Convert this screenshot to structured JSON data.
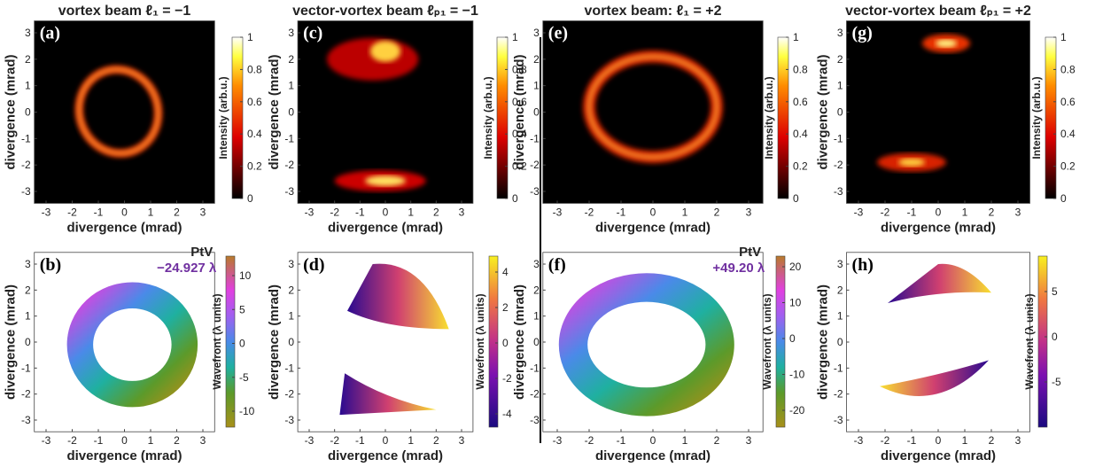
{
  "panels": [
    {
      "label": "(a)",
      "title": "vortex beam ℓ₁ = −1",
      "x_label": "divergence (mrad)",
      "y_label": "divergence (mrad)",
      "x_ticks": [
        "-3",
        "-2",
        "-1",
        "0",
        "1",
        "2",
        "3"
      ],
      "y_ticks": [
        "3",
        "2",
        "1",
        "0",
        "-1",
        "-2",
        "-3"
      ],
      "colorbar": {
        "label": "Intensity (arb.u.)",
        "ticks": [
          "1",
          "0.8",
          "0.6",
          "0.4",
          "0.2",
          "0"
        ]
      }
    },
    {
      "label": "(b)",
      "annotation": [
        "PtV",
        "−24.927 λ"
      ],
      "x_label": "divergence (mrad)",
      "y_label": "divergence (mrad)",
      "x_ticks": [
        "-3",
        "-2",
        "-1",
        "0",
        "1",
        "2",
        "3"
      ],
      "y_ticks": [
        "3",
        "2",
        "1",
        "0",
        "-1",
        "-2",
        "-3"
      ],
      "colorbar": {
        "label": "Wavefront (λ units)",
        "ticks": [
          "10",
          "5",
          "0",
          "-5",
          "-10"
        ]
      }
    },
    {
      "label": "(c)",
      "title": "vector-vortex beam ℓₚ₁ = −1",
      "x_label": "divergence (mrad)",
      "y_label": "divergence (mrad)",
      "x_ticks": [
        "-3",
        "-2",
        "-1",
        "0",
        "1",
        "2",
        "3"
      ],
      "y_ticks": [
        "3",
        "2",
        "1",
        "0",
        "-1",
        "-2",
        "-3"
      ],
      "colorbar": {
        "label": "Intensity (arb.u.)",
        "ticks": [
          "1",
          "0.8",
          "0.6",
          "0.4",
          "0.2",
          "0"
        ]
      }
    },
    {
      "label": "(d)",
      "x_label": "divergence (mrad)",
      "y_label": "divergence (mrad)",
      "x_ticks": [
        "-3",
        "-2",
        "-1",
        "0",
        "1",
        "2",
        "3"
      ],
      "y_ticks": [
        "3",
        "2",
        "1",
        "0",
        "-1",
        "-2",
        "-3"
      ],
      "colorbar": {
        "label": "Wavefront (λ units)",
        "ticks": [
          "4",
          "2",
          "0",
          "-2",
          "-4"
        ]
      }
    },
    {
      "label": "(e)",
      "title": "vortex beam: ℓ₁ = +2",
      "x_label": "divergence (mrad)",
      "y_label": "divergence (mrad)",
      "x_ticks": [
        "-3",
        "-2",
        "-1",
        "0",
        "1",
        "2",
        "3"
      ],
      "y_ticks": [
        "3",
        "2",
        "1",
        "0",
        "-1",
        "-2",
        "-3"
      ],
      "colorbar": {
        "label": "Intensity (arb.u.)",
        "ticks": [
          "1",
          "0.8",
          "0.6",
          "0.4",
          "0.2",
          "0"
        ]
      }
    },
    {
      "label": "(f)",
      "annotation": [
        "PtV",
        "+49.20 λ"
      ],
      "x_label": "divergence (mrad)",
      "y_label": "divergence (mrad)",
      "x_ticks": [
        "-3",
        "-2",
        "-1",
        "0",
        "1",
        "2",
        "3"
      ],
      "y_ticks": [
        "3",
        "2",
        "1",
        "0",
        "-1",
        "-2",
        "-3"
      ],
      "colorbar": {
        "label": "Wavefront (λ units)",
        "ticks": [
          "20",
          "10",
          "0",
          "-10",
          "-20"
        ]
      }
    },
    {
      "label": "(g)",
      "title": "vector-vortex beam ℓₚ₁ = +2",
      "x_label": "divergence (mrad)",
      "y_label": "divergence (mrad)",
      "x_ticks": [
        "-3",
        "-2",
        "-1",
        "0",
        "1",
        "2",
        "3"
      ],
      "y_ticks": [
        "3",
        "2",
        "1",
        "0",
        "-1",
        "-2",
        "-3"
      ],
      "colorbar": {
        "label": "Intensity (arb.u.)",
        "ticks": [
          "1",
          "0.8",
          "0.6",
          "0.4",
          "0.2",
          "0"
        ]
      }
    },
    {
      "label": "(h)",
      "x_label": "divergence (mrad)",
      "y_label": "divergence (mrad)",
      "x_ticks": [
        "-3",
        "-2",
        "-1",
        "0",
        "1",
        "2",
        "3"
      ],
      "y_ticks": [
        "3",
        "2",
        "1",
        "0",
        "-1",
        "-2",
        "-3"
      ],
      "colorbar": {
        "label": "Wavefront (λ units)",
        "ticks": [
          "5",
          "0",
          "-5"
        ]
      }
    }
  ]
}
